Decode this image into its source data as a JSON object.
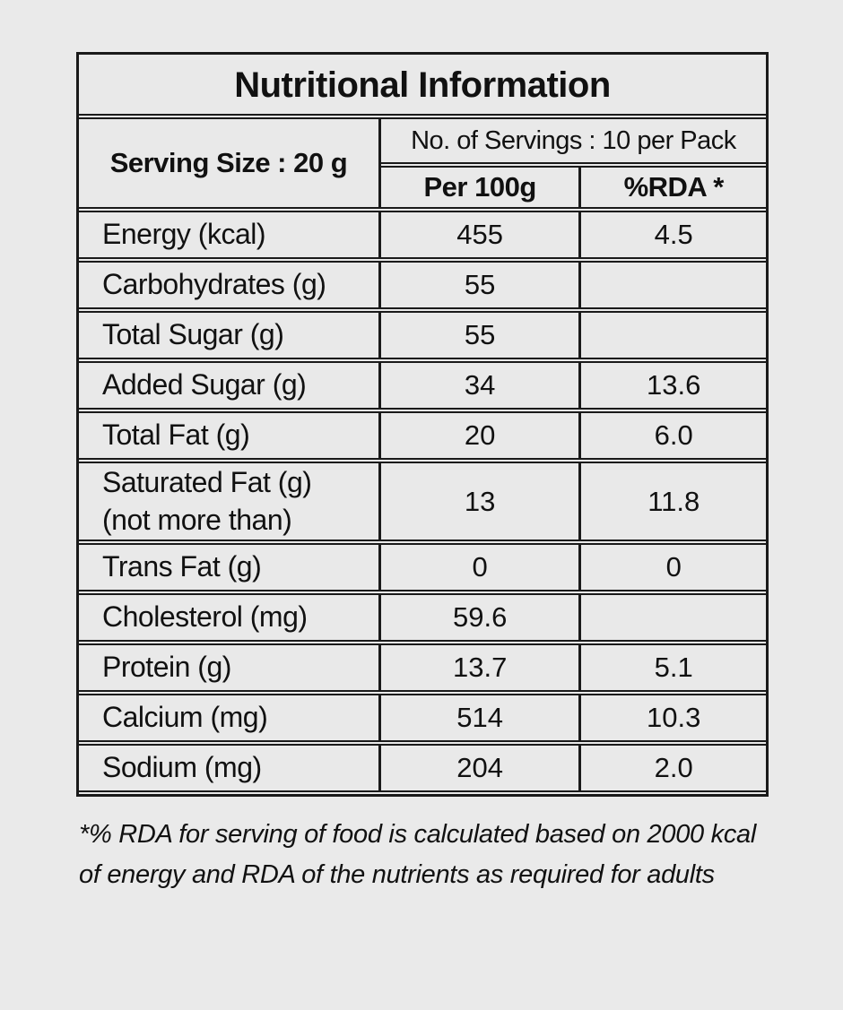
{
  "page": {
    "background": "#eaeaea",
    "border_color": "#1a1a1a",
    "text_color": "#111111"
  },
  "table": {
    "title": "Nutritional Information",
    "serving_size_label": "Serving Size : 20 g",
    "servings_label": "No. of Servings : 10 per Pack",
    "columns": [
      "Per 100g",
      "%RDA *"
    ],
    "rows": [
      {
        "label": "Energy (kcal)",
        "per_100g": "455",
        "rda": "4.5"
      },
      {
        "label": "Carbohydrates (g)",
        "per_100g": "55",
        "rda": ""
      },
      {
        "label": "Total Sugar (g)",
        "per_100g": "55",
        "rda": ""
      },
      {
        "label": "Added Sugar (g)",
        "per_100g": "34",
        "rda": "13.6"
      },
      {
        "label": "Total Fat (g)",
        "per_100g": "20",
        "rda": "6.0"
      },
      {
        "label": "Saturated Fat (g)\n(not more than)",
        "per_100g": "13",
        "rda": "11.8"
      },
      {
        "label": "Trans Fat (g)",
        "per_100g": "0",
        "rda": "0"
      },
      {
        "label": "Cholesterol (mg)",
        "per_100g": "59.6",
        "rda": ""
      },
      {
        "label": "Protein (g)",
        "per_100g": "13.7",
        "rda": "5.1"
      },
      {
        "label": "Calcium (mg)",
        "per_100g": "514",
        "rda": "10.3"
      },
      {
        "label": "Sodium (mg)",
        "per_100g": "204",
        "rda": "2.0"
      }
    ]
  },
  "footnote": "*% RDA for serving of food is calculated based on 2000 kcal\nof energy and RDA of the nutrients as required for adults"
}
